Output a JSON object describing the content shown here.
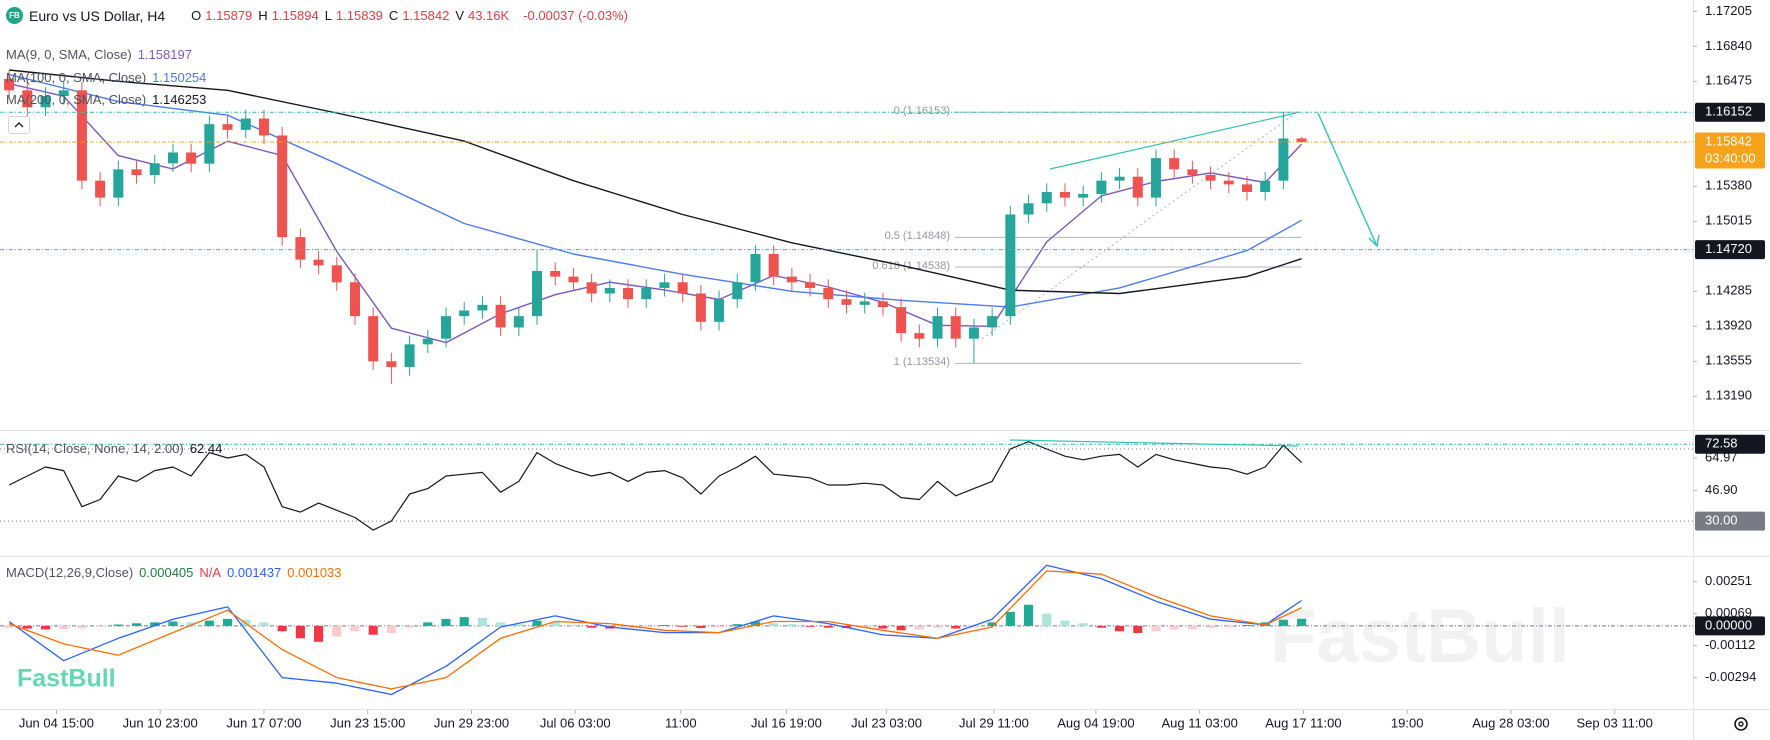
{
  "chart_data": [
    {
      "type": "candlestick",
      "title": "Euro vs US Dollar, H4",
      "badge": "FB",
      "stats": [
        {
          "key": "O",
          "value": "1.15879"
        },
        {
          "key": "H",
          "value": "1.15894"
        },
        {
          "key": "L",
          "value": "1.15839"
        },
        {
          "key": "C",
          "value": "1.15842"
        },
        {
          "key": "V",
          "value": "43.16K"
        }
      ],
      "change": "-0.00037 (-0.03%)",
      "xlim": [
        -0.5,
        92.5
      ],
      "ylim": [
        1.12849,
        1.17323
      ],
      "yticks": [
        1.17205,
        {
          "value": 1.1684,
          "label": "1.16840"
        },
        1.16475,
        {
          "value": 1.1538,
          "label": "1.15380"
        },
        1.15015,
        1.14285,
        {
          "value": 1.1392,
          "label": "1.13920"
        },
        1.13555,
        {
          "value": 1.1319,
          "label": "1.13190"
        }
      ],
      "up_color": "#26a69a",
      "down_color": "#ef5350",
      "open": [
        1.165,
        1.16381,
        1.16204,
        1.16322,
        1.16381,
        1.15439,
        1.15262,
        1.15557,
        1.15498,
        1.1562,
        1.15733,
        1.15616,
        1.16028,
        1.15969,
        1.16087,
        1.1591,
        1.1485,
        1.14615,
        1.14556,
        1.14379,
        1.14026,
        1.13555,
        1.13496,
        1.13732,
        1.13791,
        1.14026,
        1.14085,
        1.14144,
        1.13908,
        1.14026,
        1.14497,
        1.14438,
        1.14379,
        1.14262,
        1.1432,
        1.14203,
        1.1432,
        1.14379,
        1.14262,
        1.13967,
        1.14203,
        1.14379,
        1.14674,
        1.14438,
        1.14379,
        1.1432,
        1.14203,
        1.14144,
        1.1418,
        1.1412,
        1.13849,
        1.13791,
        1.14026,
        1.13791,
        1.13908,
        1.14026,
        1.15086,
        1.15203,
        1.15321,
        1.15262,
        1.153,
        1.15439,
        1.1548,
        1.15262,
        1.15674,
        1.15557,
        1.15498,
        1.15439,
        1.154,
        1.15321,
        1.15439,
        1.15879
      ],
      "high": [
        1.1659,
        1.16471,
        1.16412,
        1.16471,
        1.16471,
        1.15529,
        1.15647,
        1.15647,
        1.1571,
        1.15823,
        1.15823,
        1.16118,
        1.16118,
        1.16177,
        1.16177,
        1.16,
        1.1494,
        1.14705,
        1.14646,
        1.14469,
        1.14116,
        1.13645,
        1.13822,
        1.13881,
        1.14116,
        1.14175,
        1.14234,
        1.14234,
        1.14116,
        1.1472,
        1.14587,
        1.14528,
        1.14469,
        1.1441,
        1.1441,
        1.1441,
        1.14469,
        1.14469,
        1.14352,
        1.14293,
        1.14469,
        1.14764,
        1.14764,
        1.14528,
        1.14469,
        1.1441,
        1.14293,
        1.1427,
        1.1427,
        1.1421,
        1.13939,
        1.14116,
        1.14116,
        1.13998,
        1.14116,
        1.15176,
        1.15293,
        1.15411,
        1.15411,
        1.1539,
        1.15529,
        1.1557,
        1.1557,
        1.15764,
        1.15764,
        1.15647,
        1.15588,
        1.15529,
        1.1549,
        1.15529,
        1.16153,
        1.15894
      ],
      "low": [
        1.16291,
        1.16114,
        1.16114,
        1.16232,
        1.15349,
        1.15172,
        1.15172,
        1.15408,
        1.15408,
        1.1553,
        1.15526,
        1.15526,
        1.15879,
        1.15879,
        1.1582,
        1.1476,
        1.14525,
        1.14466,
        1.14289,
        1.13936,
        1.13465,
        1.1332,
        1.13406,
        1.13642,
        1.13701,
        1.13936,
        1.13995,
        1.13818,
        1.13818,
        1.13936,
        1.14348,
        1.14289,
        1.14172,
        1.14172,
        1.14113,
        1.14113,
        1.1423,
        1.14172,
        1.13877,
        1.13877,
        1.14113,
        1.14289,
        1.14348,
        1.14289,
        1.1423,
        1.14113,
        1.14054,
        1.14054,
        1.1403,
        1.13759,
        1.13701,
        1.13701,
        1.13701,
        1.13534,
        1.13818,
        1.13936,
        1.14996,
        1.15113,
        1.15172,
        1.15172,
        1.1521,
        1.15349,
        1.15172,
        1.15172,
        1.15467,
        1.15408,
        1.15349,
        1.1531,
        1.15231,
        1.15231,
        1.15349,
        1.15839
      ],
      "close": [
        1.16381,
        1.16204,
        1.16322,
        1.16381,
        1.15439,
        1.15262,
        1.15557,
        1.15498,
        1.1562,
        1.15733,
        1.15616,
        1.16028,
        1.15969,
        1.16087,
        1.1591,
        1.1485,
        1.14615,
        1.14556,
        1.14379,
        1.14026,
        1.13555,
        1.13496,
        1.13732,
        1.13791,
        1.14026,
        1.14085,
        1.14144,
        1.13908,
        1.14026,
        1.14497,
        1.14438,
        1.14379,
        1.14262,
        1.1432,
        1.14203,
        1.1432,
        1.14379,
        1.14262,
        1.13967,
        1.14203,
        1.14379,
        1.14674,
        1.14438,
        1.14379,
        1.1432,
        1.14203,
        1.14144,
        1.1418,
        1.1412,
        1.13849,
        1.13791,
        1.14026,
        1.13791,
        1.13908,
        1.14026,
        1.15086,
        1.15203,
        1.15321,
        1.15262,
        1.153,
        1.15439,
        1.1548,
        1.15262,
        1.15674,
        1.15557,
        1.15498,
        1.15439,
        1.154,
        1.15321,
        1.15439,
        1.15879,
        1.15842
      ],
      "series": [
        {
          "name": "MA(9, 0, SMA, Close)",
          "value_label": "1.158197",
          "color": "#7e57c2",
          "x": [
            0,
            3,
            6,
            9,
            12,
            15,
            18,
            21,
            24,
            27,
            30,
            33,
            36,
            39,
            42,
            45,
            48,
            51,
            54,
            57,
            60,
            63,
            66,
            69,
            71
          ],
          "values": [
            1.1645,
            1.1632,
            1.157,
            1.1556,
            1.1585,
            1.157,
            1.147,
            1.139,
            1.1375,
            1.1405,
            1.1425,
            1.1438,
            1.143,
            1.142,
            1.1445,
            1.1433,
            1.1417,
            1.1393,
            1.1392,
            1.148,
            1.1528,
            1.1543,
            1.1552,
            1.1542,
            1.1582
          ]
        },
        {
          "name": "MA(100, 0, SMA, Close)",
          "value_label": "1.150254",
          "color": "#4c7cf3",
          "x": [
            0,
            6,
            12,
            18,
            25,
            31,
            37,
            43,
            49,
            55,
            61,
            68,
            71
          ],
          "values": [
            1.16546,
            1.16263,
            1.16122,
            1.15616,
            1.14992,
            1.14674,
            1.14462,
            1.14285,
            1.14191,
            1.1412,
            1.1432,
            1.14709,
            1.15025
          ]
        },
        {
          "name": "MA(200, 0, SMA, Close)",
          "value_label": "1.146253",
          "color": "#131722",
          "x": [
            0,
            6,
            12,
            18,
            25,
            31,
            37,
            43,
            49,
            55,
            61,
            68,
            71
          ],
          "values": [
            1.16593,
            1.16475,
            1.16381,
            1.16145,
            1.15851,
            1.15439,
            1.15086,
            1.14791,
            1.14556,
            1.14297,
            1.14262,
            1.14438,
            1.14625
          ]
        }
      ],
      "fibonacci": [
        {
          "label": "0 (1.16153)",
          "value": 1.16153
        },
        {
          "label": "0.5 (1.14848)",
          "value": 1.14848
        },
        {
          "label": "0.618 (1.14538)",
          "value": 1.14538
        },
        {
          "label": "1 (1.13534)",
          "value": 1.13534
        }
      ],
      "price_markers": [
        {
          "value": 1.16152,
          "label": "1.16152",
          "color": "#131722",
          "line_color": "#2ec4b6"
        },
        {
          "value": 1.15842,
          "label": "1.15842",
          "countdown": "03:40:00",
          "color": "#f7a21b",
          "line_color": "#f7a21b"
        },
        {
          "value": 1.1472,
          "label": "1.14720",
          "color": "#131722",
          "line_color": "#2ec4b6"
        }
      ],
      "watermark": "FastBull"
    },
    {
      "type": "rsi",
      "name": "RSI(14, Close, None, 14, 2.00)",
      "value_label": "62.44",
      "color": "#131722",
      "xlim": [
        -0.5,
        92.5
      ],
      "ylim": [
        11.2,
        79.4
      ],
      "yticks": [
        64.97,
        {
          "value": 46.9,
          "label": "46.90"
        }
      ],
      "levels": [
        70,
        30
      ],
      "values": [
        50,
        55,
        60,
        58,
        38,
        42,
        55,
        52,
        58,
        60,
        55,
        68,
        65,
        67,
        60,
        38,
        35,
        40,
        36,
        32,
        25,
        30,
        45,
        48,
        55,
        56,
        57,
        46,
        52,
        68,
        62,
        58,
        55,
        57,
        52,
        57,
        58,
        54,
        45,
        55,
        60,
        66,
        56,
        55,
        54,
        50,
        50,
        51,
        50,
        43,
        42,
        52,
        44,
        48,
        52,
        70,
        74,
        70,
        66,
        64,
        66,
        67,
        60,
        67,
        64,
        62,
        60,
        59,
        56,
        60,
        72,
        62.44
      ],
      "markers": [
        {
          "value": 72.58,
          "label": "72.58",
          "color": "#131722",
          "line_color": "#2ec4b6"
        },
        {
          "value": 30,
          "label": "30.00",
          "color": "#787b86"
        }
      ]
    },
    {
      "type": "macd",
      "name": "MACD(12,26,9,Close)",
      "na_label": "N/A",
      "xlim": [
        -0.5,
        92.5
      ],
      "ylim": [
        -0.00471,
        0.00385
      ],
      "yticks": [
        0.00251,
        0.00069,
        -0.00112,
        -0.00294
      ],
      "markers": [
        {
          "value": 0,
          "label": "0.00000",
          "color": "#131722",
          "line_color": "#787b86"
        }
      ],
      "histogram": {
        "value_label": "0.000405",
        "label_color": "#1b7f3a",
        "colors": [
          "#22ab94",
          "#ace5dc",
          "#fccbcd",
          "#f23645"
        ],
        "values": [
          -0.0001,
          -0.00015,
          -0.0002,
          -0.00018,
          -0.00012,
          -5e-05,
          8e-05,
          0.00015,
          0.0002,
          0.00025,
          0.0002,
          0.0003,
          0.0004,
          0.00035,
          0.0002,
          -0.0003,
          -0.0007,
          -0.0009,
          -0.0006,
          -0.0003,
          -0.0005,
          -0.0004,
          -0.0001,
          0.0002,
          0.0004,
          0.0005,
          0.00045,
          0.0002,
          0.0001,
          0.0003,
          0.0002,
          5e-05,
          -0.0001,
          -0.00015,
          -0.0001,
          -5e-05,
          5e-05,
          -5e-05,
          -0.00012,
          -8e-05,
          0.0001,
          0.00025,
          0.00015,
          0.0001,
          -5e-05,
          -0.0001,
          -0.00012,
          -8e-05,
          -0.00015,
          -0.00025,
          -0.0002,
          -0.0001,
          -0.00015,
          -0.0001,
          0.0002,
          0.0008,
          0.0012,
          0.0007,
          0.0003,
          0.00015,
          -0.0001,
          -0.0003,
          -0.0004,
          -0.0003,
          -0.0002,
          -0.0002,
          -0.00012,
          -8e-05,
          5e-05,
          0.0002,
          0.00035,
          0.000405
        ]
      },
      "series": [
        {
          "value_label": "0.001437",
          "color": "#2962ff",
          "x": [
            0,
            3,
            6,
            9,
            12,
            15,
            18,
            21,
            24,
            27,
            30,
            33,
            36,
            39,
            42,
            45,
            48,
            51,
            54,
            57,
            60,
            63,
            66,
            69,
            71
          ],
          "values": [
            0.00025,
            -0.00197,
            -0.0007,
            0.00038,
            0.00108,
            -0.00293,
            -0.00325,
            -0.00389,
            -0.00229,
            -6e-05,
            0.00057,
            -6e-05,
            -0.00038,
            -0.00038,
            0.00057,
            0.00013,
            -0.00051,
            -0.0007,
            0.00038,
            0.00344,
            0.00268,
            0.0014,
            0.00038,
            6e-05,
            0.00144
          ]
        },
        {
          "value_label": "0.001033",
          "color": "#ff6d00",
          "x": [
            0,
            3,
            6,
            9,
            12,
            15,
            18,
            21,
            24,
            27,
            30,
            33,
            36,
            39,
            42,
            45,
            48,
            51,
            54,
            57,
            60,
            63,
            66,
            69,
            71
          ],
          "values": [
            0.00013,
            -0.00102,
            -0.00166,
            -0.00038,
            0.00089,
            -0.00134,
            -0.00293,
            -0.00357,
            -0.00293,
            -0.0007,
            0.00025,
            0.00013,
            -0.00025,
            -0.00038,
            0.00025,
            0.00025,
            -0.00025,
            -0.0007,
            -6e-05,
            0.00312,
            0.00293,
            0.00166,
            0.00057,
            6e-05,
            0.00103
          ]
        }
      ],
      "xticks": [
        {
          "value": 2.6,
          "label": "Jun 04 15:00"
        },
        {
          "value": 8.3,
          "label": "Jun 10 23:00"
        },
        {
          "value": 14,
          "label": "Jun 17 07:00"
        },
        {
          "value": 19.7,
          "label": "Jun 23 15:00"
        },
        {
          "value": 25.4,
          "label": "Jun 29 23:00"
        },
        {
          "value": 31.1,
          "label": "Jul 06 03:00"
        },
        {
          "value": 36.9,
          "label": "11:00"
        },
        {
          "value": 42.7,
          "label": "Jul 16 19:00"
        },
        {
          "value": 48.2,
          "label": "Jul 23 03:00"
        },
        {
          "value": 54.1,
          "label": "Jul 29 11:00"
        },
        {
          "value": 59.7,
          "label": "Aug 04 19:00"
        },
        {
          "value": 65.4,
          "label": "Aug 11 03:00"
        },
        {
          "value": 71.1,
          "label": "Aug 17 11:00"
        },
        {
          "value": 76.8,
          "label": "19:00"
        },
        {
          "value": 82.5,
          "label": "Aug 28 03:00"
        },
        {
          "value": 88.2,
          "label": "Sep 03 11:00"
        }
      ],
      "logo": "FastBull"
    }
  ]
}
